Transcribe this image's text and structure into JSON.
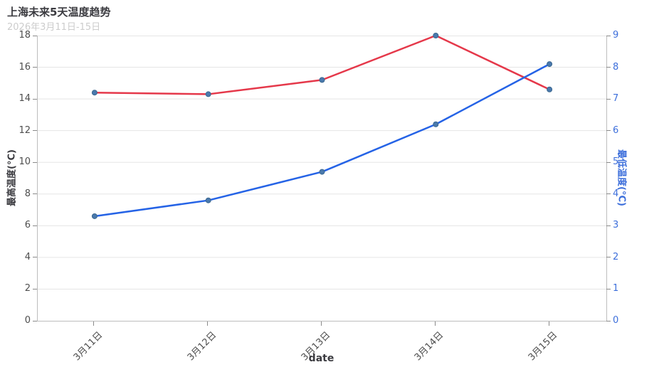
{
  "header": {
    "title": "上海未来5天温度趋势",
    "subtitle": "2026年3月11日-15日"
  },
  "chart_data": {
    "type": "line",
    "title": "上海未来5天温度趋势",
    "subtitle": "2026年3月11日-15日",
    "xlabel": "date",
    "categories": [
      "3月11日",
      "3月12日",
      "3月13日",
      "3月14日",
      "3月15日"
    ],
    "series": [
      {
        "name": "最高温度",
        "yaxis": "left",
        "color": "#e5384a",
        "values": [
          14.4,
          14.3,
          15.2,
          18.0,
          14.6
        ]
      },
      {
        "name": "最低温度",
        "yaxis": "right",
        "color": "#2563e6",
        "values": [
          3.3,
          3.8,
          4.7,
          6.2,
          8.1
        ]
      }
    ],
    "y_axis_left": {
      "label": "最高温度(°C)",
      "min": 0,
      "max": 18,
      "step": 2,
      "ticks": [
        0,
        2,
        4,
        6,
        8,
        10,
        12,
        14,
        16,
        18
      ],
      "tick_color": "#4d4d4d"
    },
    "y_axis_right": {
      "label": "最低温度(°C)",
      "min": 0,
      "max": 9,
      "step": 1,
      "ticks": [
        0,
        1,
        2,
        3,
        4,
        5,
        6,
        7,
        8,
        9
      ],
      "tick_color": "#3d6fdb"
    },
    "x_tick_rotation_deg": -45,
    "grid": true,
    "legend_position": "none",
    "marker": {
      "shape": "circle",
      "fill": "#4a79ad",
      "stroke": "#3b6890"
    }
  },
  "style": {
    "background": "#ffffff",
    "grid_color": "#e5e5e5",
    "axis_line_color": "#bdbdbd",
    "tick_mark_color": "#8a8a8a",
    "title_color": "#3b3b40",
    "subtitle_color": "#cccccc",
    "x_tick_label_color": "#4d4d4d"
  }
}
